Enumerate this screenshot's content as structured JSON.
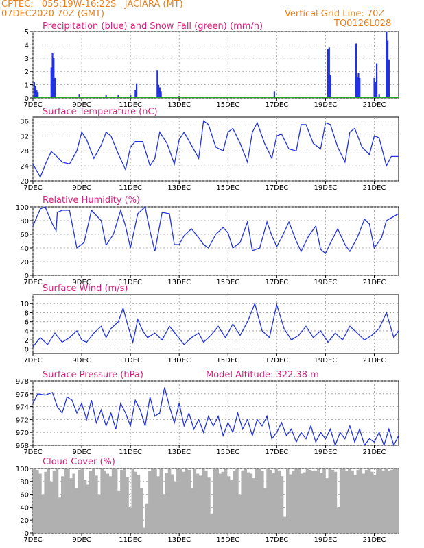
{
  "header": {
    "line1": "CPTEC:   055:19W-16:22S   JACIARA (MT)",
    "line2": "07DEC2020 70Z (GMT)",
    "vgrid": "Vertical Grid Line: 70Z",
    "code": "TQ0126L028"
  },
  "colors": {
    "header": "#e87e1c",
    "title": "#d6207d",
    "line": "#2233dd",
    "snow": "#22aa22",
    "cloud": "#b0b0b0"
  },
  "xaxis": {
    "labels": [
      "7DEC",
      "9DEC",
      "11DEC",
      "13DEC",
      "15DEC",
      "17DEC",
      "19DEC",
      "21DEC"
    ],
    "label_days": [
      0,
      2,
      4,
      6,
      8,
      10,
      12,
      14
    ],
    "range_days": [
      0,
      15
    ]
  },
  "chart_data": [
    {
      "type": "bar",
      "title": "Precipitation (blue) and Snow Fall (green) (mm/h)",
      "ylim": [
        0,
        5
      ],
      "yticks": [
        0,
        1,
        2,
        3,
        4,
        5
      ],
      "series": [
        {
          "name": "Precipitation",
          "x_days": [
            0.05,
            0.1,
            0.15,
            0.2,
            0.75,
            0.8,
            0.85,
            0.9,
            1.9,
            2.0,
            3.0,
            3.5,
            4.0,
            4.2,
            4.25,
            4.9,
            5.1,
            5.15,
            5.2,
            5.25,
            6.0,
            9.9,
            12.1,
            12.15,
            12.2,
            13.25,
            13.3,
            13.35,
            13.4,
            14.0,
            14.05,
            14.1,
            14.2,
            14.5,
            14.55,
            14.6
          ],
          "values": [
            1.2,
            0.9,
            0.6,
            0.4,
            2.3,
            3.4,
            3.0,
            1.5,
            0.3,
            0.1,
            0.2,
            0.2,
            0.2,
            0.6,
            1.1,
            0.1,
            2.1,
            1.0,
            0.8,
            0.5,
            0.15,
            0.5,
            3.7,
            3.8,
            1.7,
            4.1,
            1.6,
            1.9,
            1.5,
            1.5,
            1.2,
            2.6,
            0.3,
            5.0,
            4.3,
            2.9
          ]
        },
        {
          "name": "Snow Fall",
          "values": [
            0
          ]
        }
      ]
    },
    {
      "type": "line",
      "title": "Surface Temperature (nC)",
      "ylim": [
        20,
        37
      ],
      "yticks": [
        20,
        24,
        28,
        32,
        36
      ],
      "x_days": [
        0,
        0.3,
        0.55,
        0.75,
        0.9,
        1.2,
        1.5,
        1.8,
        2.0,
        2.2,
        2.5,
        2.8,
        3.0,
        3.2,
        3.5,
        3.8,
        4.0,
        4.2,
        4.5,
        4.8,
        5.0,
        5.2,
        5.5,
        5.8,
        6.0,
        6.2,
        6.5,
        6.8,
        7.0,
        7.2,
        7.5,
        7.8,
        8.0,
        8.2,
        8.5,
        8.8,
        9.0,
        9.2,
        9.5,
        9.8,
        10.0,
        10.2,
        10.5,
        10.8,
        11.0,
        11.2,
        11.5,
        11.8,
        12.0,
        12.2,
        12.5,
        12.8,
        13.0,
        13.2,
        13.5,
        13.8,
        14.0,
        14.2,
        14.5,
        14.7,
        15.0
      ],
      "values": [
        24.5,
        21,
        25,
        27.8,
        27,
        25,
        24.5,
        28,
        33,
        31,
        26,
        29.5,
        33,
        32,
        27.2,
        23,
        29,
        30.5,
        30.5,
        24,
        26,
        33,
        30,
        24.5,
        31,
        33,
        29.5,
        26,
        36,
        35,
        29,
        28,
        33,
        34,
        30,
        25,
        33,
        35.5,
        30,
        26,
        32,
        32.5,
        28.5,
        28,
        35,
        35,
        30,
        28.5,
        35.5,
        35,
        29,
        25,
        33,
        34,
        29,
        27,
        32,
        31.5,
        24,
        26.5,
        26.5
      ]
    },
    {
      "type": "line",
      "title": "Relative Humidity (%)",
      "ylim": [
        0,
        100
      ],
      "yticks": [
        0,
        20,
        40,
        60,
        80,
        100
      ],
      "x_days": [
        0,
        0.3,
        0.5,
        0.8,
        0.95,
        1.0,
        1.2,
        1.5,
        1.8,
        2.1,
        2.4,
        2.8,
        3.0,
        3.3,
        3.6,
        3.8,
        4.0,
        4.3,
        4.6,
        4.8,
        5.0,
        5.3,
        5.6,
        5.8,
        6.0,
        6.2,
        6.5,
        6.8,
        7.0,
        7.2,
        7.5,
        7.8,
        8.0,
        8.2,
        8.5,
        8.8,
        9.0,
        9.3,
        9.6,
        9.8,
        10.0,
        10.2,
        10.5,
        10.8,
        11.0,
        11.3,
        11.6,
        11.8,
        12.0,
        12.2,
        12.5,
        12.8,
        13.0,
        13.3,
        13.6,
        13.8,
        14.0,
        14.3,
        14.5,
        14.7,
        15.0
      ],
      "values": [
        72,
        97,
        100,
        75,
        65,
        92,
        95,
        95,
        40,
        48,
        95,
        80,
        44,
        60,
        95,
        72,
        40,
        90,
        100,
        65,
        35,
        92,
        90,
        45,
        45,
        58,
        68,
        55,
        45,
        40,
        60,
        70,
        62,
        40,
        48,
        78,
        36,
        40,
        78,
        58,
        42,
        55,
        78,
        50,
        35,
        57,
        72,
        38,
        32,
        47,
        68,
        45,
        35,
        55,
        82,
        75,
        40,
        55,
        80,
        84,
        90
      ]
    },
    {
      "type": "line",
      "title": "Surface Wind (m/s)",
      "ylim": [
        -1,
        12
      ],
      "yticks": [
        0,
        2,
        4,
        6,
        8,
        10
      ],
      "x_days": [
        0,
        0.3,
        0.6,
        0.9,
        1.2,
        1.5,
        1.8,
        2.0,
        2.2,
        2.5,
        2.8,
        3.0,
        3.2,
        3.5,
        3.7,
        3.9,
        4.1,
        4.3,
        4.5,
        4.7,
        5.0,
        5.3,
        5.6,
        5.9,
        6.2,
        6.5,
        6.8,
        7.0,
        7.3,
        7.6,
        7.9,
        8.2,
        8.5,
        8.8,
        9.1,
        9.4,
        9.7,
        10.0,
        10.3,
        10.6,
        10.9,
        11.2,
        11.5,
        11.8,
        12.1,
        12.4,
        12.7,
        13.0,
        13.3,
        13.6,
        13.9,
        14.2,
        14.5,
        14.8,
        15.0
      ],
      "values": [
        0.5,
        2.5,
        1.0,
        3.5,
        1.5,
        2.5,
        4.0,
        2.0,
        1.5,
        3.5,
        5.0,
        2.5,
        4.5,
        6.0,
        9.0,
        5.0,
        1.5,
        6.5,
        4.0,
        2.5,
        3.5,
        2.0,
        5.0,
        3.0,
        1.0,
        2.5,
        3.5,
        1.5,
        3.0,
        5.0,
        2.5,
        5.5,
        3.0,
        6.0,
        10.0,
        4.0,
        2.5,
        9.8,
        4.5,
        2.0,
        3.0,
        5.0,
        2.5,
        4.0,
        1.5,
        3.5,
        2.0,
        5.0,
        3.5,
        2.0,
        3.0,
        4.5,
        8.0,
        2.5,
        4.0
      ]
    },
    {
      "type": "line",
      "title": "Surface Pressure (hPa)",
      "subtitle": "Model Altitude: 322.38 m",
      "ylim": [
        968,
        978
      ],
      "yticks": [
        968,
        970,
        972,
        974,
        976,
        978
      ],
      "x_days": [
        0,
        0.2,
        0.5,
        0.8,
        1.0,
        1.2,
        1.4,
        1.6,
        1.8,
        2.0,
        2.2,
        2.4,
        2.6,
        2.8,
        3.0,
        3.2,
        3.4,
        3.6,
        3.8,
        4.0,
        4.2,
        4.4,
        4.6,
        4.8,
        5.0,
        5.2,
        5.4,
        5.6,
        5.8,
        6.0,
        6.2,
        6.4,
        6.6,
        6.8,
        7.0,
        7.2,
        7.4,
        7.6,
        7.8,
        8.0,
        8.2,
        8.4,
        8.6,
        8.8,
        9.0,
        9.2,
        9.4,
        9.6,
        9.8,
        10.0,
        10.2,
        10.4,
        10.6,
        10.8,
        11.0,
        11.2,
        11.4,
        11.6,
        11.8,
        12.0,
        12.2,
        12.4,
        12.6,
        12.8,
        13.0,
        13.2,
        13.4,
        13.6,
        13.8,
        14.0,
        14.2,
        14.4,
        14.6,
        14.8,
        15.0
      ],
      "values": [
        974.5,
        976,
        975.8,
        976.2,
        974,
        973,
        975.5,
        975,
        973,
        974.5,
        972,
        975,
        971.5,
        973.5,
        971,
        973,
        970.5,
        974.5,
        973,
        971,
        975,
        973.5,
        971,
        975.5,
        972.5,
        973,
        977,
        974,
        971.5,
        974.5,
        971,
        973,
        970.5,
        972,
        970,
        972.5,
        971,
        972.5,
        969.5,
        971.5,
        970,
        973,
        970.5,
        972,
        969.5,
        972,
        971,
        972.5,
        969,
        970,
        971.5,
        969.5,
        970.5,
        968.5,
        970,
        969,
        971,
        968.5,
        970,
        969,
        970.5,
        968,
        970,
        969,
        971,
        968.5,
        970.5,
        968,
        969,
        968.5,
        970,
        968,
        970.5,
        968,
        969.5
      ]
    },
    {
      "type": "area",
      "title": "Cloud Cover (%)",
      "ylim": [
        0,
        100
      ],
      "yticks": [
        0,
        20,
        40,
        60,
        80,
        100
      ],
      "note_values": "cloud cover percent sampled along the period",
      "values": [
        100,
        98,
        92,
        60,
        95,
        100,
        80,
        97,
        100,
        55,
        88,
        99,
        100,
        85,
        92,
        70,
        98,
        100,
        82,
        75,
        96,
        100,
        89,
        60,
        100,
        97,
        92,
        88,
        100,
        99,
        65,
        98,
        100,
        87,
        40,
        100,
        95,
        90,
        70,
        8,
        45,
        96,
        100,
        99,
        88,
        100,
        60,
        93,
        100,
        91,
        80,
        100,
        99,
        95,
        100,
        98,
        70,
        100,
        92,
        89,
        100,
        97,
        86,
        30,
        99,
        100,
        92,
        95,
        100,
        88,
        82,
        96,
        100,
        60,
        97,
        100,
        94,
        92,
        85,
        100,
        99,
        96,
        70,
        100,
        98,
        93,
        100,
        97,
        88,
        25,
        100,
        91,
        96,
        100,
        99,
        92,
        94,
        100,
        98,
        96,
        97,
        100,
        93,
        99,
        85,
        100,
        98,
        95,
        40,
        100,
        99,
        96,
        100,
        97,
        90,
        98,
        100,
        92,
        98,
        100,
        95,
        90,
        100,
        99,
        97,
        100,
        96,
        98,
        99,
        100
      ]
    }
  ]
}
